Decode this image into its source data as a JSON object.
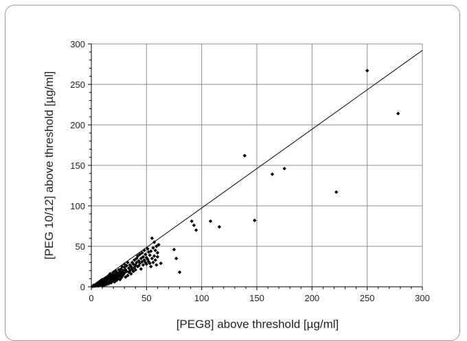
{
  "chart_data": {
    "type": "scatter",
    "title": "",
    "xlabel": "[PEG8] above threshold [µg/ml]",
    "ylabel": "[PEG 10/12] above threshold [µg/ml]",
    "xlim": [
      0,
      300
    ],
    "ylim": [
      0,
      300
    ],
    "xticks": [
      "0",
      "50",
      "100",
      "150",
      "200",
      "250",
      "300"
    ],
    "yticks": [
      "0",
      "50",
      "100",
      "150",
      "200",
      "250",
      "300"
    ],
    "grid": true,
    "legend": "none",
    "marker_color": "#000000",
    "fit_line": {
      "x": [
        0,
        300
      ],
      "y": [
        0,
        292
      ]
    },
    "points": [
      [
        1,
        0.5
      ],
      [
        2,
        1
      ],
      [
        2,
        2
      ],
      [
        3,
        1
      ],
      [
        3,
        2
      ],
      [
        4,
        3
      ],
      [
        4,
        1
      ],
      [
        5,
        2
      ],
      [
        5,
        4
      ],
      [
        6,
        3
      ],
      [
        6,
        5
      ],
      [
        6,
        1
      ],
      [
        7,
        2
      ],
      [
        7,
        6
      ],
      [
        7,
        4
      ],
      [
        8,
        3
      ],
      [
        8,
        7
      ],
      [
        8,
        5
      ],
      [
        9,
        2
      ],
      [
        9,
        6
      ],
      [
        9,
        8
      ],
      [
        10,
        4
      ],
      [
        10,
        9
      ],
      [
        10,
        1
      ],
      [
        11,
        5
      ],
      [
        11,
        3
      ],
      [
        11,
        7
      ],
      [
        12,
        6
      ],
      [
        12,
        10
      ],
      [
        12,
        2
      ],
      [
        13,
        8
      ],
      [
        13,
        4
      ],
      [
        13,
        11
      ],
      [
        14,
        6
      ],
      [
        14,
        9
      ],
      [
        14,
        3
      ],
      [
        15,
        12
      ],
      [
        15,
        7
      ],
      [
        15,
        10
      ],
      [
        15,
        5
      ],
      [
        16,
        8
      ],
      [
        16,
        14
      ],
      [
        16,
        4
      ],
      [
        17,
        11
      ],
      [
        17,
        6
      ],
      [
        17,
        16
      ],
      [
        18,
        9
      ],
      [
        18,
        13
      ],
      [
        18,
        5
      ],
      [
        19,
        10
      ],
      [
        19,
        15
      ],
      [
        19,
        7
      ],
      [
        20,
        12
      ],
      [
        20,
        18
      ],
      [
        20,
        8
      ],
      [
        21,
        14
      ],
      [
        21,
        10
      ],
      [
        21,
        6
      ],
      [
        22,
        16
      ],
      [
        22,
        11
      ],
      [
        22,
        20
      ],
      [
        23,
        13
      ],
      [
        23,
        8
      ],
      [
        23,
        18
      ],
      [
        24,
        15
      ],
      [
        24,
        10
      ],
      [
        25,
        21
      ],
      [
        25,
        13
      ],
      [
        25,
        17
      ],
      [
        26,
        9
      ],
      [
        26,
        19
      ],
      [
        26,
        14
      ],
      [
        27,
        22
      ],
      [
        27,
        16
      ],
      [
        27,
        11
      ],
      [
        28,
        18
      ],
      [
        28,
        25
      ],
      [
        28,
        13
      ],
      [
        29,
        15
      ],
      [
        29,
        20
      ],
      [
        30,
        24
      ],
      [
        30,
        17
      ],
      [
        30,
        28
      ],
      [
        31,
        12
      ],
      [
        31,
        21
      ],
      [
        32,
        26
      ],
      [
        32,
        19
      ],
      [
        33,
        14
      ],
      [
        33,
        30
      ],
      [
        34,
        23
      ],
      [
        34,
        18
      ],
      [
        35,
        27
      ],
      [
        35,
        20
      ],
      [
        36,
        25
      ],
      [
        36,
        16
      ],
      [
        37,
        30
      ],
      [
        37,
        22
      ],
      [
        38,
        28
      ],
      [
        38,
        19
      ],
      [
        39,
        33
      ],
      [
        39,
        24
      ],
      [
        40,
        27
      ],
      [
        40,
        21
      ],
      [
        41,
        35
      ],
      [
        41,
        30
      ],
      [
        42,
        25
      ],
      [
        42,
        38
      ],
      [
        43,
        32
      ],
      [
        43,
        26
      ],
      [
        44,
        40
      ],
      [
        44,
        29
      ],
      [
        45,
        35
      ],
      [
        45,
        22
      ],
      [
        46,
        42
      ],
      [
        46,
        31
      ],
      [
        47,
        37
      ],
      [
        47,
        27
      ],
      [
        48,
        45
      ],
      [
        48,
        33
      ],
      [
        49,
        30
      ],
      [
        49,
        40
      ],
      [
        50,
        36
      ],
      [
        50,
        28
      ],
      [
        51,
        47
      ],
      [
        51,
        34
      ],
      [
        52,
        31
      ],
      [
        52,
        43
      ],
      [
        53,
        39
      ],
      [
        53,
        29
      ],
      [
        54,
        44
      ],
      [
        54,
        25
      ],
      [
        55,
        35
      ],
      [
        55,
        60
      ],
      [
        56,
        48
      ],
      [
        56,
        30
      ],
      [
        57,
        55
      ],
      [
        57,
        38
      ],
      [
        58,
        33
      ],
      [
        58,
        45
      ],
      [
        59,
        50
      ],
      [
        59,
        27
      ],
      [
        60,
        42
      ],
      [
        60,
        37
      ],
      [
        61,
        52
      ],
      [
        63,
        29
      ],
      [
        75,
        46
      ],
      [
        77,
        35
      ],
      [
        80,
        18
      ],
      [
        91,
        81
      ],
      [
        93,
        76
      ],
      [
        95,
        70
      ],
      [
        108,
        81
      ],
      [
        116,
        74
      ],
      [
        139,
        162
      ],
      [
        148,
        82
      ],
      [
        164,
        139
      ],
      [
        175,
        146
      ],
      [
        222,
        117
      ],
      [
        250,
        267
      ],
      [
        278,
        214
      ]
    ]
  }
}
